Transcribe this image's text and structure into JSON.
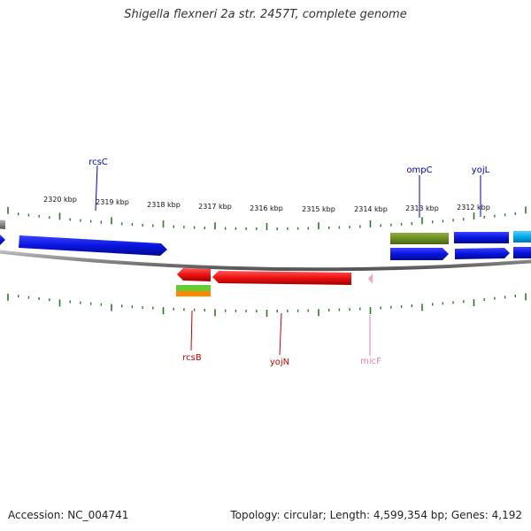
{
  "title": "Shigella flexneri 2a str. 2457T, complete genome",
  "footer": {
    "accession": "Accession: NC_004741",
    "topology": "Topology: circular; Length: 4,599,354 bp; Genes: 4,192"
  },
  "scale_labels": [
    "2320 kbp",
    "2319 kbp",
    "2318 kbp",
    "2317 kbp",
    "2316 kbp",
    "2315 kbp",
    "2314 kbp",
    "2313 kbp",
    "2312 kbp"
  ],
  "gene_labels": [
    {
      "name": "rcsC",
      "color": "#0000cc"
    },
    {
      "name": "ompC",
      "color": "#0000cc"
    },
    {
      "name": "yojL",
      "color": "#0000cc"
    },
    {
      "name": "rcsB",
      "color": "#cc0000"
    },
    {
      "name": "yojN",
      "color": "#cc0000"
    },
    {
      "name": "micF",
      "color": "#e87fb0"
    }
  ],
  "colors": {
    "forward_cds": "#0a14e0",
    "reverse_cds": "#ee1111",
    "rna": "#66cc33",
    "olive_feature": "#6b8e23",
    "cyan_feature": "#00aaee",
    "orange_feature": "#ff8800",
    "pink_feature": "#f4a6c8",
    "backbone": "#8a8a8a",
    "tick": "#2a7a2a"
  }
}
